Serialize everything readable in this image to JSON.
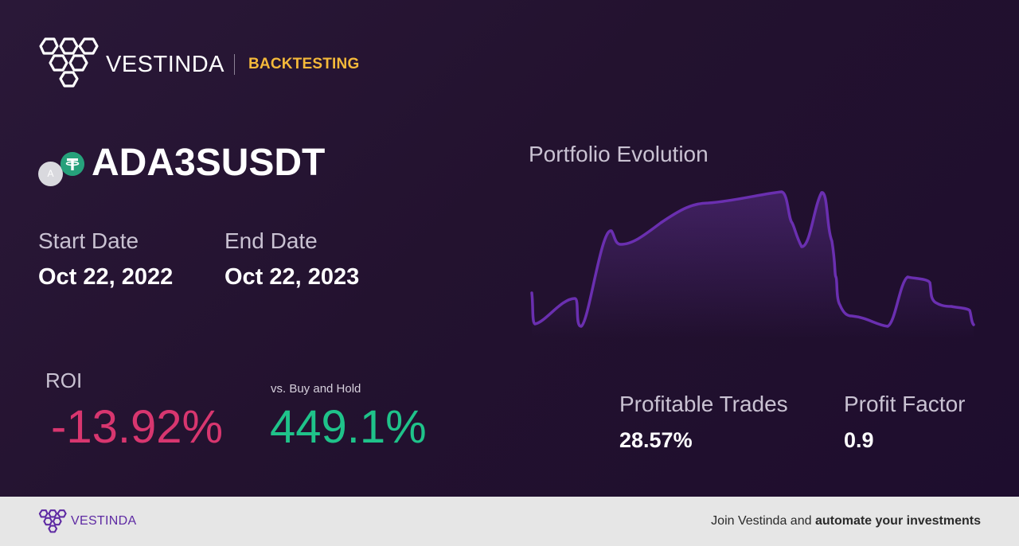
{
  "header": {
    "brand": "VESTINDA",
    "section": "BACKTESTING"
  },
  "asset": {
    "symbol": "ADA3SUSDT",
    "base_icon": "cardano-coin-icon",
    "base_icon_letter": "A",
    "quote_icon": "tether-coin-icon",
    "quote_icon_glyph": "₮"
  },
  "dates": {
    "start_label": "Start Date",
    "start_value": "Oct 22, 2022",
    "end_label": "End Date",
    "end_value": "Oct 22, 2023"
  },
  "metrics": {
    "roi_label": "ROI",
    "roi_value": "-13.92%",
    "bh_label": "vs. Buy and Hold",
    "bh_value": "449.1%",
    "profitable_label": "Profitable Trades",
    "profitable_value": "28.57%",
    "pf_label": "Profit Factor",
    "pf_value": "0.9"
  },
  "chart": {
    "title": "Portfolio Evolution",
    "line_color": "#6a2fb0"
  },
  "colors": {
    "negative": "#d8366f",
    "positive": "#1fc38a",
    "accent": "#f4b93a",
    "brand_purple": "#5e2aa3"
  },
  "footer": {
    "brand": "VESTINDA",
    "cta_prefix": "Join Vestinda and ",
    "cta_bold": "automate your investments"
  }
}
